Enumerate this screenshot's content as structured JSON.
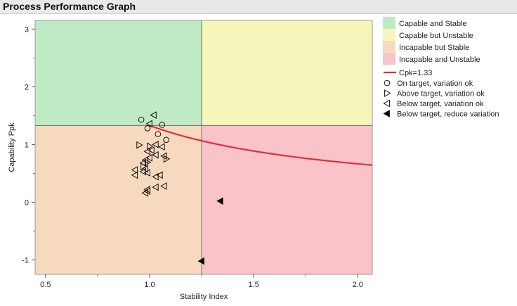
{
  "window": {
    "title": "Process Performance Graph"
  },
  "chart_data": {
    "type": "scatter",
    "title": "Process Performance Graph",
    "xlabel": "Stability Index",
    "ylabel": "Capability Ppk",
    "xlim": [
      0.45,
      2.07
    ],
    "ylim": [
      -1.25,
      3.15
    ],
    "xticks": [
      0.5,
      1.0,
      1.5,
      2.0
    ],
    "xtick_labels": [
      "0.5",
      "1.0",
      "1.5",
      "2.0"
    ],
    "yticks": [
      -1,
      0,
      1,
      2,
      3
    ],
    "ytick_labels": [
      "-1",
      "0",
      "1",
      "2",
      "3"
    ],
    "stability_threshold": 1.25,
    "capability_threshold": 1.33,
    "regions": [
      {
        "name": "Capable and Stable",
        "color": "#bfeac3"
      },
      {
        "name": "Capable but Unstable",
        "color": "#f6f6bb"
      },
      {
        "name": "Incapable but Stable",
        "color": "#f6d9bf"
      },
      {
        "name": "Incapable and Unstable",
        "color": "#fac3c8"
      }
    ],
    "curve": {
      "name": "Cpk=1.33",
      "color": "#d9333d",
      "constant": 1.33
    },
    "legend_position": "right",
    "series": [
      {
        "name": "On target, variation ok",
        "marker": "circle",
        "points": [
          [
            0.96,
            1.43
          ],
          [
            1.06,
            1.34
          ],
          [
            0.99,
            1.28
          ],
          [
            1.04,
            1.18
          ],
          [
            1.08,
            1.08
          ]
        ]
      },
      {
        "name": "Above target, variation ok",
        "marker": "triangle-right",
        "points": [
          [
            0.95,
            0.99
          ],
          [
            1.0,
            0.97
          ],
          [
            1.08,
            0.75
          ],
          [
            0.99,
            0.69
          ],
          [
            0.97,
            0.62
          ]
        ]
      },
      {
        "name": "Below target, variation ok",
        "marker": "triangle-left",
        "points": [
          [
            1.02,
            1.51
          ],
          [
            1.0,
            1.36
          ],
          [
            1.03,
            1.0
          ],
          [
            1.06,
            0.96
          ],
          [
            1.01,
            0.9
          ],
          [
            0.99,
            0.88
          ],
          [
            1.03,
            0.82
          ],
          [
            1.07,
            0.8
          ],
          [
            1.0,
            0.77
          ],
          [
            0.98,
            0.73
          ],
          [
            0.97,
            0.68
          ],
          [
            0.98,
            0.58
          ],
          [
            0.93,
            0.56
          ],
          [
            0.97,
            0.53
          ],
          [
            0.99,
            0.51
          ],
          [
            0.93,
            0.47
          ],
          [
            1.05,
            0.47
          ],
          [
            1.03,
            0.44
          ],
          [
            1.07,
            0.28
          ],
          [
            1.03,
            0.26
          ],
          [
            0.99,
            0.22
          ],
          [
            0.99,
            0.19
          ],
          [
            0.98,
            0.16
          ]
        ]
      },
      {
        "name": "Below target, reduce variation",
        "marker": "triangle-left-filled",
        "points": [
          [
            1.34,
            0.02
          ],
          [
            1.25,
            -1.02
          ]
        ]
      }
    ]
  }
}
